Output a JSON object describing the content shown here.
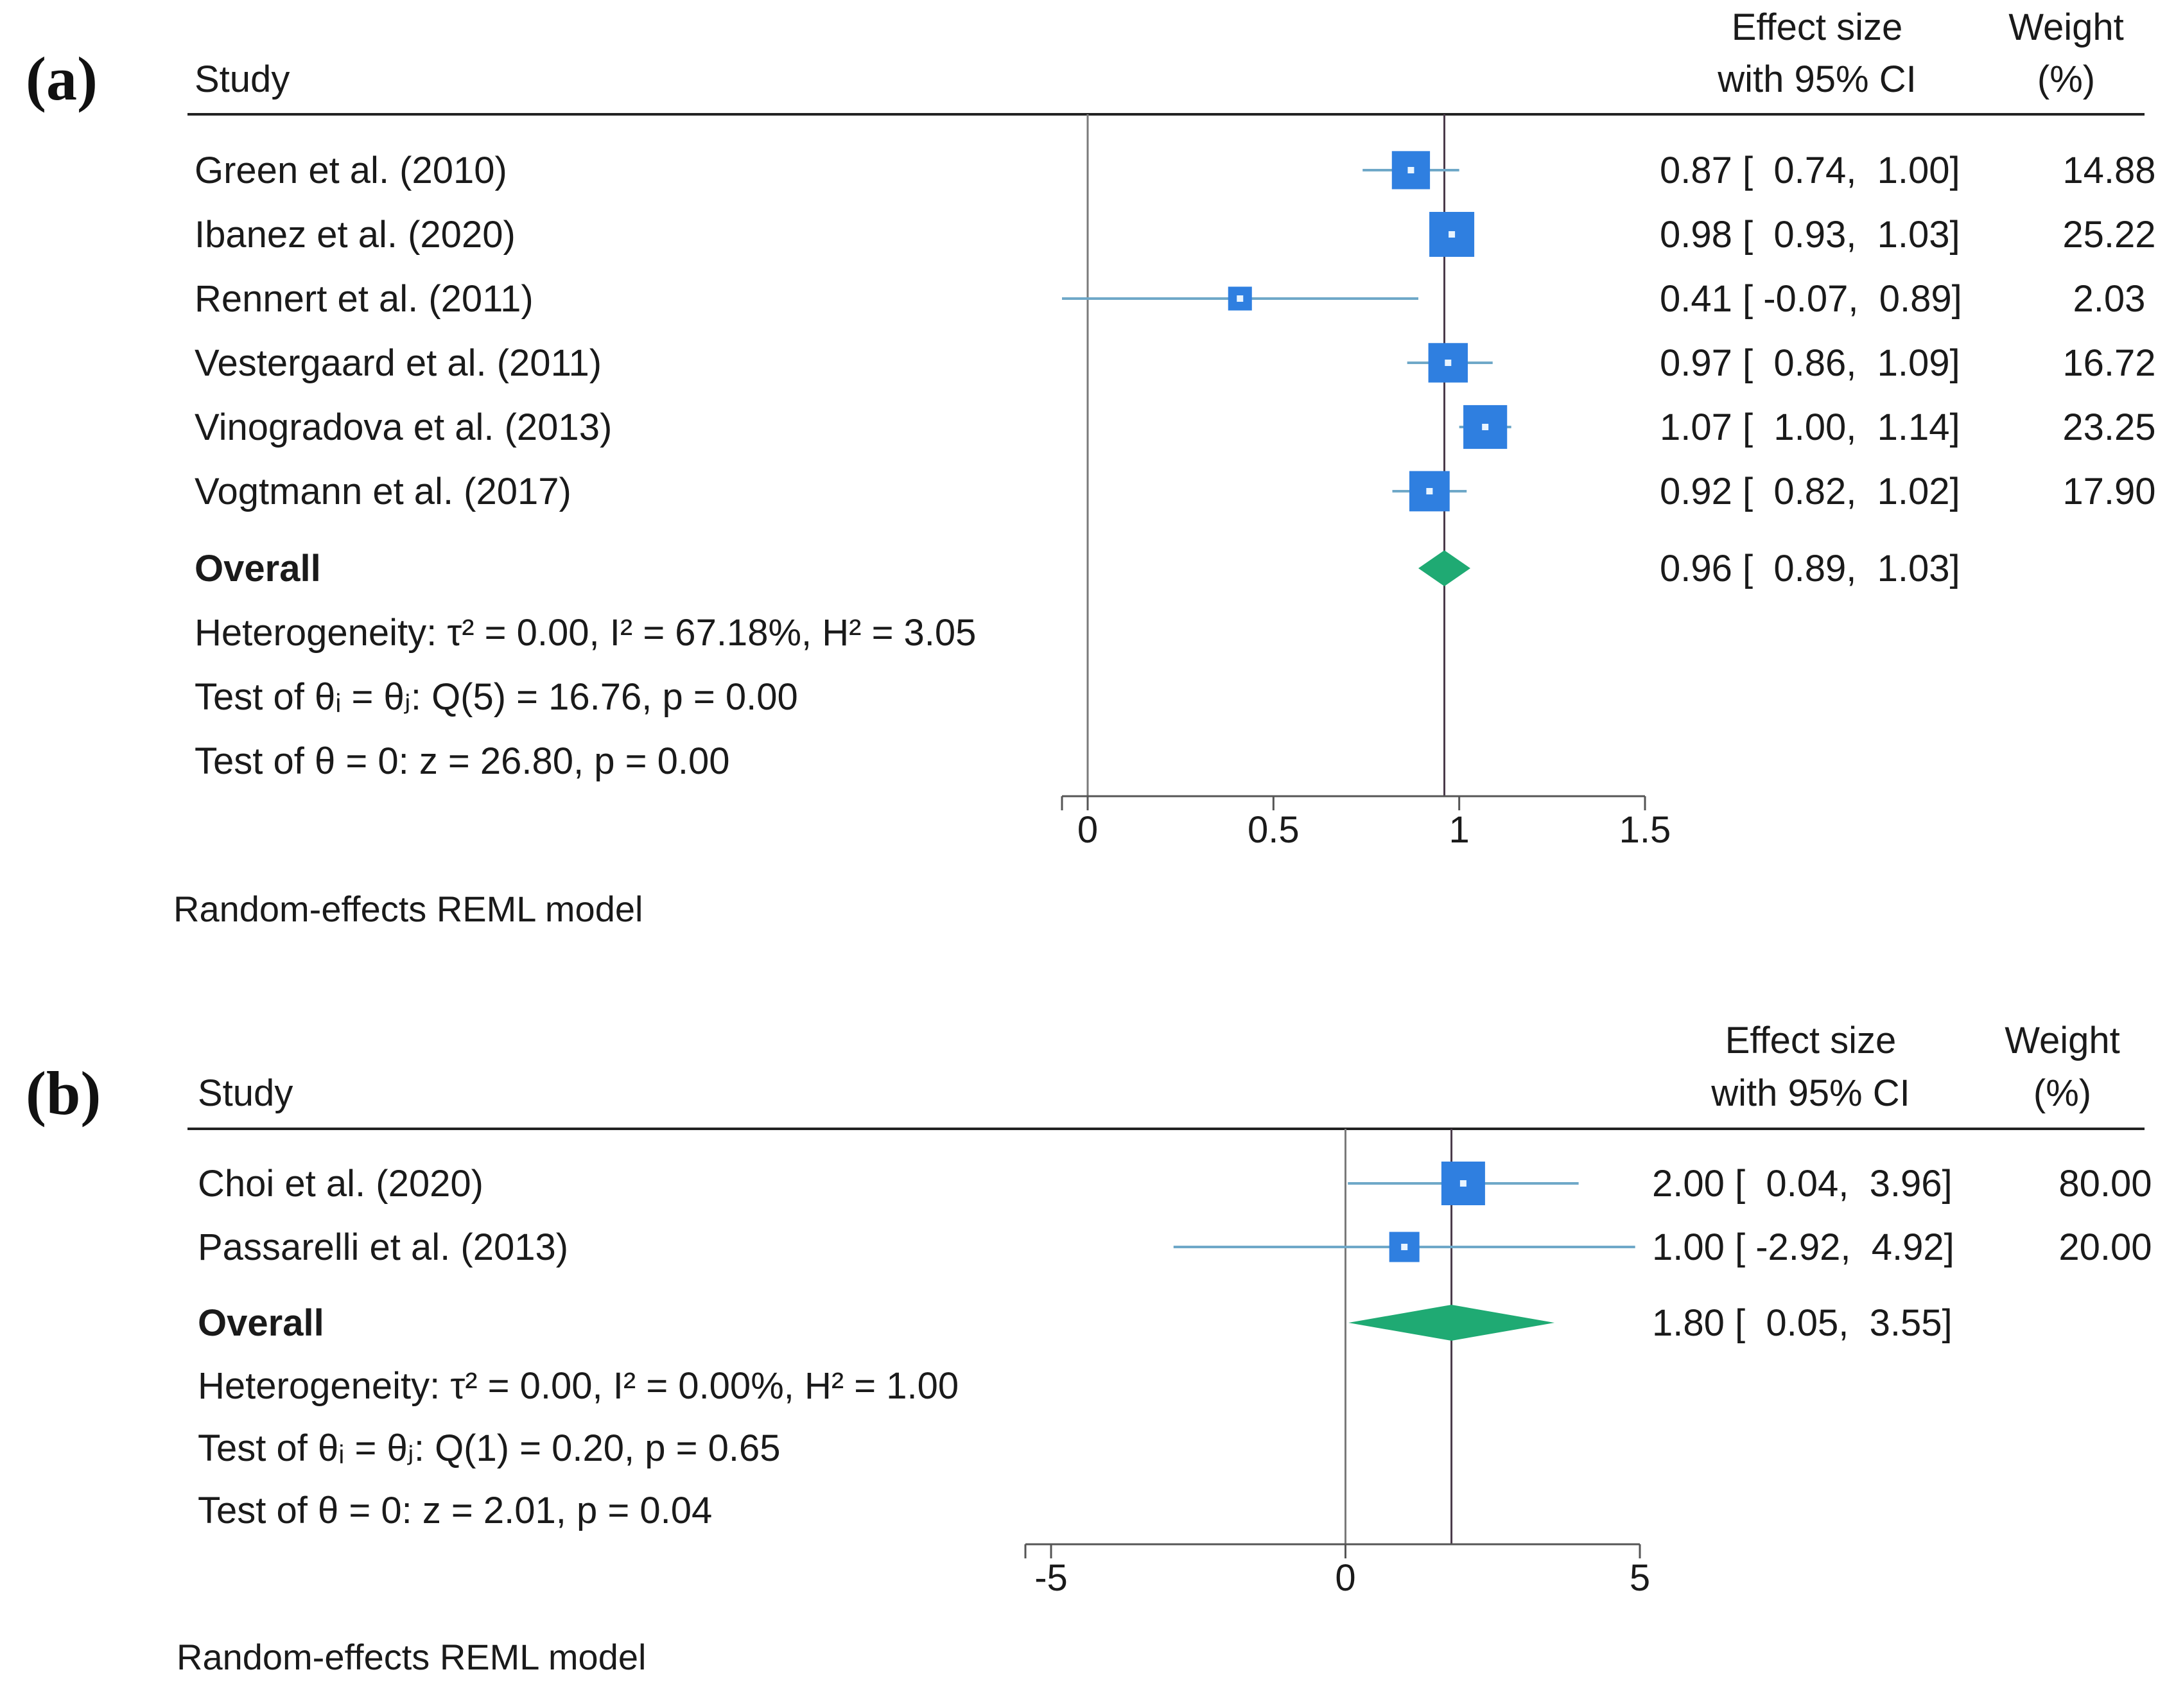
{
  "colors": {
    "marker": "#2f7fe0",
    "marker_center": "#e8f4ff",
    "ci_line": "#6fa8c8",
    "diamond": "#1faa73",
    "axis": "#555555",
    "rule": "#222222"
  },
  "chart_data": [
    {
      "type": "forest",
      "panel_label": "(a)",
      "headers": {
        "study": "Study",
        "effect_line1": "Effect size",
        "effect_line2": "with 95% CI",
        "weight_line1": "Weight",
        "weight_line2": "(%)"
      },
      "studies": [
        {
          "name": "Green et al. (2010)",
          "es": 0.87,
          "lo": 0.74,
          "hi": 1.0,
          "ci_text": "0.87 [  0.74,  1.00]",
          "weight": 14.88,
          "weight_text": "14.88"
        },
        {
          "name": "Ibanez et al. (2020)",
          "es": 0.98,
          "lo": 0.93,
          "hi": 1.03,
          "ci_text": "0.98 [  0.93,  1.03]",
          "weight": 25.22,
          "weight_text": "25.22"
        },
        {
          "name": "Rennert et al. (2011)",
          "es": 0.41,
          "lo": -0.07,
          "hi": 0.89,
          "ci_text": "0.41 [ -0.07,  0.89]",
          "weight": 2.03,
          "weight_text": "2.03"
        },
        {
          "name": "Vestergaard et al. (2011)",
          "es": 0.97,
          "lo": 0.86,
          "hi": 1.09,
          "ci_text": "0.97 [  0.86,  1.09]",
          "weight": 16.72,
          "weight_text": "16.72"
        },
        {
          "name": "Vinogradova et al. (2013)",
          "es": 1.07,
          "lo": 1.0,
          "hi": 1.14,
          "ci_text": "1.07 [  1.00,  1.14]",
          "weight": 23.25,
          "weight_text": "23.25"
        },
        {
          "name": "Vogtmann et al. (2017)",
          "es": 0.92,
          "lo": 0.82,
          "hi": 1.02,
          "ci_text": "0.92 [  0.82,  1.02]",
          "weight": 17.9,
          "weight_text": "17.90"
        }
      ],
      "overall": {
        "label": "Overall",
        "es": 0.96,
        "lo": 0.89,
        "hi": 1.03,
        "ci_text": "0.96 [  0.89,  1.03]"
      },
      "stats": {
        "heterogeneity": "Heterogeneity: τ² = 0.00, I² = 67.18%, H² = 3.05",
        "test_q": "Test of θᵢ = θⱼ: Q(5) = 16.76, p = 0.00",
        "test_z": "Test of θ = 0: z = 26.80, p = 0.00"
      },
      "x_ticks": [
        0,
        0.5,
        1,
        1.5
      ],
      "x_tick_labels": [
        "0",
        "0.5",
        "1",
        "1.5"
      ],
      "xlim": [
        0,
        1.5
      ],
      "null_line": 0,
      "footer": "Random-effects REML model"
    },
    {
      "type": "forest",
      "panel_label": "(b)",
      "headers": {
        "study": "Study",
        "effect_line1": "Effect size",
        "effect_line2": "with 95% CI",
        "weight_line1": "Weight",
        "weight_line2": "(%)"
      },
      "studies": [
        {
          "name": "Choi et al. (2020)",
          "es": 2.0,
          "lo": 0.04,
          "hi": 3.96,
          "ci_text": "2.00 [  0.04,  3.96]",
          "weight": 80.0,
          "weight_text": "80.00"
        },
        {
          "name": "Passarelli et al. (2013)",
          "es": 1.0,
          "lo": -2.92,
          "hi": 4.92,
          "ci_text": "1.00 [ -2.92,  4.92]",
          "weight": 20.0,
          "weight_text": "20.00"
        }
      ],
      "overall": {
        "label": "Overall",
        "es": 1.8,
        "lo": 0.05,
        "hi": 3.55,
        "ci_text": "1.80 [  0.05,  3.55]"
      },
      "stats": {
        "heterogeneity": "Heterogeneity: τ² = 0.00, I² = 0.00%, H² = 1.00",
        "test_q": "Test of θᵢ = θⱼ: Q(1) = 0.20, p = 0.65",
        "test_z": "Test of θ = 0: z = 2.01, p = 0.04"
      },
      "x_ticks": [
        -5,
        0,
        5
      ],
      "x_tick_labels": [
        "-5",
        "0",
        "5"
      ],
      "xlim": [
        -5,
        5
      ],
      "null_line": 0,
      "footer": "Random-effects REML model"
    }
  ]
}
